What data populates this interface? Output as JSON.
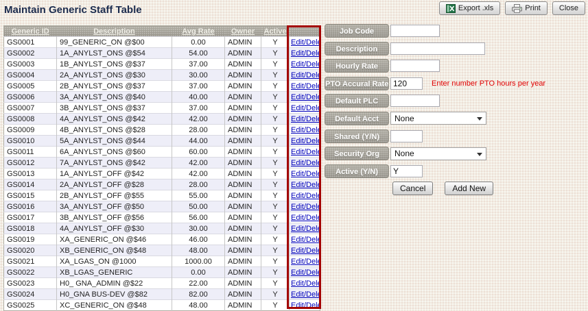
{
  "page": {
    "title": "Maintain Generic Staff Table"
  },
  "toolbar": {
    "export_label": "Export .xls",
    "print_label": "Print",
    "close_label": "Close"
  },
  "table": {
    "columns": {
      "id": "Generic ID",
      "description": "Description",
      "avg_rate": "Avg Rate",
      "owner": "Owner",
      "active": "Active"
    },
    "action_label": "Edit/Delete",
    "highlight_color": "#a40404",
    "rows": [
      {
        "id": "GS0001",
        "description": "99_GENERIC_ON @$00",
        "avg_rate": "0.00",
        "owner": "ADMIN",
        "active": "Y"
      },
      {
        "id": "GS0002",
        "description": "1A_ANYLST_ONS @$54",
        "avg_rate": "54.00",
        "owner": "ADMIN",
        "active": "Y"
      },
      {
        "id": "GS0003",
        "description": "1B_ANYLST_ONS @$37",
        "avg_rate": "37.00",
        "owner": "ADMIN",
        "active": "Y"
      },
      {
        "id": "GS0004",
        "description": "2A_ANYLST_ONS @$30",
        "avg_rate": "30.00",
        "owner": "ADMIN",
        "active": "Y"
      },
      {
        "id": "GS0005",
        "description": "2B_ANYLST_ONS @$37",
        "avg_rate": "37.00",
        "owner": "ADMIN",
        "active": "Y"
      },
      {
        "id": "GS0006",
        "description": "3A_ANYLST_ONS @$40",
        "avg_rate": "40.00",
        "owner": "ADMIN",
        "active": "Y"
      },
      {
        "id": "GS0007",
        "description": "3B_ANYLST_ONS @$37",
        "avg_rate": "37.00",
        "owner": "ADMIN",
        "active": "Y"
      },
      {
        "id": "GS0008",
        "description": "4A_ANYLST_ONS @$42",
        "avg_rate": "42.00",
        "owner": "ADMIN",
        "active": "Y"
      },
      {
        "id": "GS0009",
        "description": "4B_ANYLST_ONS @$28",
        "avg_rate": "28.00",
        "owner": "ADMIN",
        "active": "Y"
      },
      {
        "id": "GS0010",
        "description": "5A_ANYLST_ONS @$44",
        "avg_rate": "44.00",
        "owner": "ADMIN",
        "active": "Y"
      },
      {
        "id": "GS0011",
        "description": "6A_ANYLST_ONS @$60",
        "avg_rate": "60.00",
        "owner": "ADMIN",
        "active": "Y"
      },
      {
        "id": "GS0012",
        "description": "7A_ANYLST_ONS @$42",
        "avg_rate": "42.00",
        "owner": "ADMIN",
        "active": "Y"
      },
      {
        "id": "GS0013",
        "description": "1A_ANYLST_OFF @$42",
        "avg_rate": "42.00",
        "owner": "ADMIN",
        "active": "Y"
      },
      {
        "id": "GS0014",
        "description": "2A_ANYLST_OFF @$28",
        "avg_rate": "28.00",
        "owner": "ADMIN",
        "active": "Y"
      },
      {
        "id": "GS0015",
        "description": "2B_ANYLST_OFF @$55",
        "avg_rate": "55.00",
        "owner": "ADMIN",
        "active": "Y"
      },
      {
        "id": "GS0016",
        "description": "3A_ANYLST_OFF @$50",
        "avg_rate": "50.00",
        "owner": "ADMIN",
        "active": "Y"
      },
      {
        "id": "GS0017",
        "description": "3B_ANYLST_OFF @$56",
        "avg_rate": "56.00",
        "owner": "ADMIN",
        "active": "Y"
      },
      {
        "id": "GS0018",
        "description": "4A_ANYLST_OFF @$30",
        "avg_rate": "30.00",
        "owner": "ADMIN",
        "active": "Y"
      },
      {
        "id": "GS0019",
        "description": "XA_GENERIC_ON @$46",
        "avg_rate": "46.00",
        "owner": "ADMIN",
        "active": "Y"
      },
      {
        "id": "GS0020",
        "description": "XB_GENERIC_ON @$48",
        "avg_rate": "48.00",
        "owner": "ADMIN",
        "active": "Y"
      },
      {
        "id": "GS0021",
        "description": "XA_LGAS_ON @1000",
        "avg_rate": "1000.00",
        "owner": "ADMIN",
        "active": "Y"
      },
      {
        "id": "GS0022",
        "description": "XB_LGAS_GENERIC",
        "avg_rate": "0.00",
        "owner": "ADMIN",
        "active": "Y"
      },
      {
        "id": "GS0023",
        "description": "H0_ GNA_ADMIN @$22",
        "avg_rate": "22.00",
        "owner": "ADMIN",
        "active": "Y"
      },
      {
        "id": "GS0024",
        "description": "H0_GNA BUS-DEV @$82",
        "avg_rate": "82.00",
        "owner": "ADMIN",
        "active": "Y"
      },
      {
        "id": "GS0025",
        "description": "XC_GENERIC_ON @$48",
        "avg_rate": "48.00",
        "owner": "ADMIN",
        "active": "Y"
      }
    ]
  },
  "form": {
    "fields": [
      {
        "name": "job-code",
        "label": "Job Code",
        "type": "text",
        "value": "",
        "size": "fw72"
      },
      {
        "name": "description",
        "label": "Description",
        "type": "text",
        "value": "",
        "size": "fw138"
      },
      {
        "name": "hourly-rate",
        "label": "Hourly Rate",
        "type": "text",
        "value": "",
        "size": "fw72"
      },
      {
        "name": "pto-accural-rate",
        "label": "PTO Accural Rate",
        "type": "text",
        "value": "120",
        "size": "fw47",
        "note": "Enter number PTO hours per year"
      },
      {
        "name": "default-plc",
        "label": "Default PLC",
        "type": "text",
        "value": "",
        "size": "fw72"
      },
      {
        "name": "default-acct",
        "label": "Default Acct",
        "type": "select",
        "value": "None",
        "size": "w140"
      },
      {
        "name": "shared-yn",
        "label": "Shared (Y/N)",
        "type": "text",
        "value": "",
        "size": "fw47"
      },
      {
        "name": "security-org",
        "label": "Security Org",
        "type": "select",
        "value": "None",
        "size": "w140"
      },
      {
        "name": "active-yn",
        "label": "Active (Y/N)",
        "type": "text",
        "value": "Y",
        "size": "fw47"
      }
    ],
    "cancel_label": "Cancel",
    "add_new_label": "Add New"
  }
}
